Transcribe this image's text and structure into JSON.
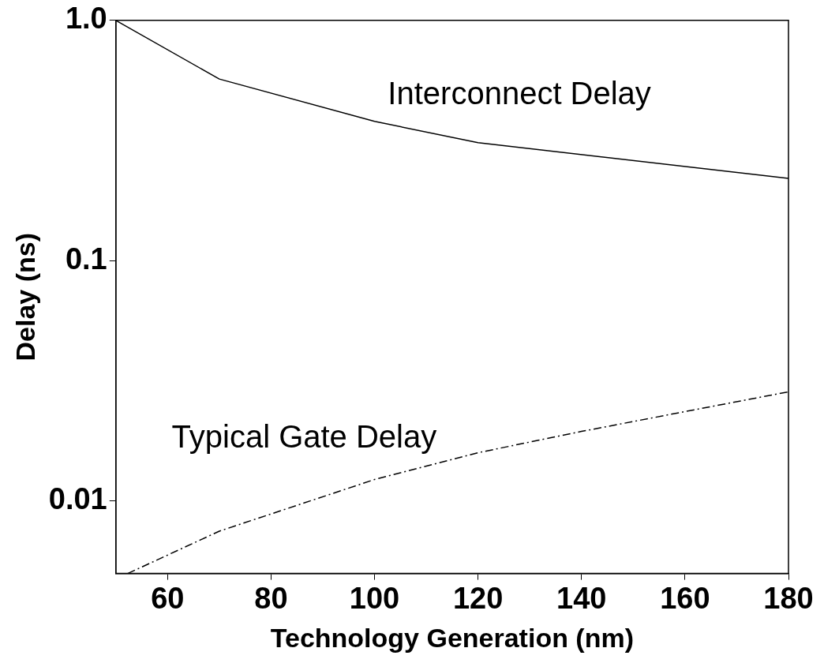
{
  "chart_data": {
    "type": "line",
    "xlabel": "Technology Generation (nm)",
    "ylabel": "Delay (ns)",
    "log": "y",
    "xlim": [
      50,
      180
    ],
    "xticks": [
      60,
      80,
      100,
      120,
      140,
      160,
      180
    ],
    "ylim": [
      0.005,
      1
    ],
    "yticks": [
      0.01,
      0.1,
      {
        "value": 1,
        "label": "1.0"
      }
    ],
    "grid": false,
    "legend": false,
    "marker": "none",
    "series": [
      {
        "name": "Interconnect Delay",
        "color": "#000000",
        "line_style": "solid",
        "x": [
          50,
          70,
          100,
          120,
          180
        ],
        "values": [
          1.0,
          0.57,
          0.38,
          0.31,
          0.22
        ]
      },
      {
        "name": "Typical Gate Delay",
        "color": "#000000",
        "line_style": "dashed",
        "x": [
          52.3,
          70,
          100,
          120,
          140,
          180
        ],
        "values": [
          0.005,
          0.0075,
          0.0123,
          0.0159,
          0.0195,
          0.0285
        ]
      }
    ]
  }
}
